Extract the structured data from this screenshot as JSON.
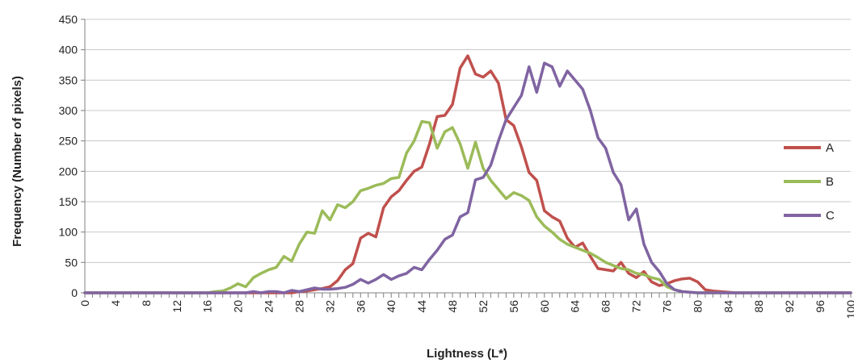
{
  "chart_data": {
    "type": "line",
    "title": "",
    "xlabel": "Lightness (L*)",
    "ylabel": "Frequency (Number of pixels)",
    "xlim": [
      0,
      100
    ],
    "ylim": [
      0,
      450
    ],
    "x_ticks": [
      0,
      4,
      8,
      12,
      16,
      20,
      24,
      28,
      32,
      36,
      40,
      44,
      48,
      52,
      56,
      60,
      64,
      68,
      72,
      76,
      80,
      84,
      88,
      92,
      96,
      100
    ],
    "y_ticks": [
      0,
      50,
      100,
      150,
      200,
      250,
      300,
      350,
      400,
      450
    ],
    "grid": true,
    "legend_position": "right",
    "x": [
      0,
      1,
      2,
      3,
      4,
      5,
      6,
      7,
      8,
      9,
      10,
      11,
      12,
      13,
      14,
      15,
      16,
      17,
      18,
      19,
      20,
      21,
      22,
      23,
      24,
      25,
      26,
      27,
      28,
      29,
      30,
      31,
      32,
      33,
      34,
      35,
      36,
      37,
      38,
      39,
      40,
      41,
      42,
      43,
      44,
      45,
      46,
      47,
      48,
      49,
      50,
      51,
      52,
      53,
      54,
      55,
      56,
      57,
      58,
      59,
      60,
      61,
      62,
      63,
      64,
      65,
      66,
      67,
      68,
      69,
      70,
      71,
      72,
      73,
      74,
      75,
      76,
      77,
      78,
      79,
      80,
      81,
      82,
      83,
      84,
      85,
      86,
      87,
      88,
      89,
      90,
      91,
      92,
      93,
      94,
      95,
      96,
      97,
      98,
      99,
      100
    ],
    "series": [
      {
        "name": "A",
        "color": "#c0504d",
        "values": [
          0,
          0,
          0,
          0,
          0,
          0,
          0,
          0,
          0,
          0,
          0,
          0,
          0,
          0,
          0,
          0,
          0,
          0,
          0,
          0,
          0,
          0,
          0,
          0,
          0,
          0,
          0,
          0,
          2,
          3,
          5,
          7,
          10,
          20,
          38,
          48,
          90,
          98,
          92,
          140,
          158,
          168,
          185,
          200,
          207,
          245,
          290,
          292,
          310,
          370,
          390,
          360,
          355,
          365,
          345,
          285,
          275,
          240,
          198,
          185,
          135,
          125,
          118,
          90,
          75,
          82,
          60,
          40,
          38,
          36,
          50,
          32,
          25,
          35,
          18,
          12,
          15,
          20,
          23,
          24,
          18,
          5,
          3,
          2,
          1,
          0,
          0,
          0,
          0,
          0,
          0,
          0,
          0,
          0,
          0,
          0,
          0,
          0,
          0,
          0,
          0
        ]
      },
      {
        "name": "B",
        "color": "#9bbb59",
        "values": [
          0,
          0,
          0,
          0,
          0,
          0,
          0,
          0,
          0,
          0,
          0,
          0,
          0,
          0,
          0,
          0,
          0,
          2,
          3,
          8,
          15,
          10,
          25,
          32,
          38,
          42,
          60,
          52,
          80,
          100,
          98,
          135,
          120,
          145,
          140,
          150,
          168,
          172,
          177,
          180,
          188,
          190,
          230,
          250,
          282,
          280,
          238,
          265,
          272,
          245,
          205,
          248,
          205,
          185,
          170,
          155,
          165,
          160,
          152,
          125,
          110,
          100,
          88,
          80,
          75,
          70,
          65,
          58,
          50,
          45,
          40,
          38,
          32,
          30,
          25,
          22,
          10,
          5,
          2,
          1,
          0,
          0,
          0,
          0,
          0,
          0,
          0,
          0,
          0,
          0,
          0,
          0,
          0,
          0,
          0,
          0,
          0,
          0,
          0,
          0,
          0
        ]
      },
      {
        "name": "C",
        "color": "#8064a2",
        "values": [
          0,
          0,
          0,
          0,
          0,
          0,
          0,
          0,
          0,
          0,
          0,
          0,
          0,
          0,
          0,
          0,
          0,
          0,
          0,
          0,
          0,
          0,
          2,
          0,
          2,
          2,
          0,
          4,
          2,
          5,
          8,
          6,
          6,
          7,
          9,
          14,
          22,
          16,
          22,
          30,
          22,
          28,
          32,
          42,
          38,
          55,
          70,
          88,
          95,
          125,
          132,
          186,
          190,
          210,
          250,
          285,
          305,
          325,
          372,
          330,
          378,
          372,
          340,
          365,
          350,
          335,
          300,
          255,
          238,
          198,
          178,
          120,
          138,
          80,
          50,
          35,
          15,
          5,
          2,
          1,
          0,
          0,
          0,
          0,
          0,
          0,
          0,
          0,
          0,
          0,
          0,
          0,
          0,
          0,
          0,
          0,
          0,
          0,
          0,
          0,
          0
        ]
      }
    ]
  }
}
